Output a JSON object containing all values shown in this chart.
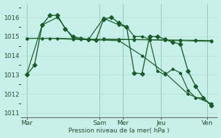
{
  "bg_color": "#c8f0ea",
  "grid_color_major": "#b0ddd4",
  "grid_color_minor": "#c0e8e0",
  "line_color": "#1a5c28",
  "xlabel": "Pression niveau de la mer( hPa )",
  "ylim": [
    1010.8,
    1016.7
  ],
  "yticks": [
    1011,
    1012,
    1013,
    1014,
    1015,
    1016
  ],
  "xlim": [
    -0.3,
    25.3
  ],
  "day_labels": [
    "Mar",
    "Sam",
    "Mer",
    "Jeu",
    "Ven"
  ],
  "day_positions": [
    0.5,
    10,
    13,
    18,
    24
  ],
  "vline_positions": [
    0.5,
    10,
    13,
    18,
    24
  ],
  "series": [
    {
      "x": [
        0.5,
        1.5,
        2.5,
        3.5,
        4.5,
        5.5,
        6.5,
        7.5,
        8.5,
        9.5,
        10.5,
        11.5,
        12.5,
        13.5,
        14.5,
        15.5,
        16.5,
        17.5,
        18.5,
        19.5,
        20.5,
        21.5,
        22.5,
        23.5,
        24.5
      ],
      "y": [
        1013.0,
        1013.5,
        1015.6,
        1016.1,
        1016.1,
        1015.4,
        1015.0,
        1014.9,
        1014.85,
        1014.8,
        1015.9,
        1016.0,
        1015.7,
        1015.5,
        1013.1,
        1013.05,
        1015.0,
        1015.0,
        1014.85,
        1014.7,
        1014.6,
        1013.2,
        1012.4,
        1011.8,
        1011.4
      ],
      "lw": 1.0,
      "ms": 3
    },
    {
      "x": [
        0.5,
        2.5,
        4.5,
        6.5,
        8.5,
        10.5,
        12.5,
        14.5,
        16.5,
        18.5,
        20.5,
        22.5,
        24.5
      ],
      "y": [
        1014.9,
        1014.9,
        1014.9,
        1014.88,
        1014.86,
        1014.85,
        1014.84,
        1014.83,
        1014.82,
        1014.8,
        1014.78,
        1014.76,
        1014.74
      ],
      "lw": 0.8,
      "ms": 2
    },
    {
      "x": [
        0.5,
        3.5,
        6.5,
        9.5,
        12.5,
        15.5,
        18.5,
        21.5,
        24.5
      ],
      "y": [
        1014.9,
        1014.9,
        1014.85,
        1014.82,
        1014.78,
        1014.0,
        1013.1,
        1012.0,
        1011.5
      ],
      "lw": 0.9,
      "ms": 2
    },
    {
      "x": [
        0.5,
        2.5,
        4.5,
        6.5,
        8.5,
        10.5,
        12.5,
        13.5,
        14.5,
        15.5,
        16.5,
        17.5,
        18.5,
        19.5,
        20.5,
        21.5,
        22.5,
        23.5,
        24.5
      ],
      "y": [
        1013.05,
        1015.6,
        1016.0,
        1014.9,
        1014.82,
        1015.95,
        1015.6,
        1015.5,
        1015.0,
        1015.0,
        1014.85,
        1013.2,
        1013.0,
        1013.3,
        1013.1,
        1012.2,
        1011.8,
        1011.8,
        1011.4
      ],
      "lw": 0.9,
      "ms": 2
    },
    {
      "x": [
        10.5,
        12.5,
        14.5,
        16.5,
        18.5,
        20.5,
        22.5,
        24.5
      ],
      "y": [
        1014.87,
        1014.85,
        1014.84,
        1014.83,
        1014.82,
        1014.81,
        1014.8,
        1014.79
      ],
      "lw": 0.8,
      "ms": 2
    }
  ]
}
